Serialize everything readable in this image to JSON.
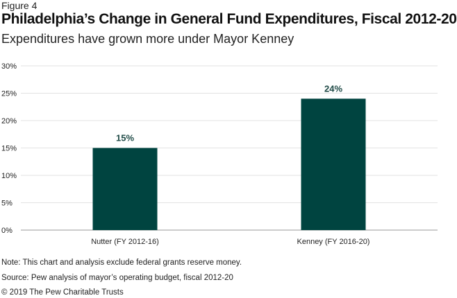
{
  "figure_label": "Figure 4",
  "title": "Philadelphia’s Change in General Fund Expenditures, Fiscal 2012-20",
  "subtitle": "Expenditures have grown more under Mayor Kenney",
  "note": "Note: This chart and analysis exclude federal grants reserve money.",
  "source": "Source: Pew analysis of mayor’s operating budget, fiscal 2012-20",
  "copyright": "© 2019 The Pew Charitable Trusts",
  "colors": {
    "bar": "#004440",
    "gridline": "#d9d9d9",
    "axis": "#999999",
    "data_label": "#1f4a46"
  },
  "chart_data": {
    "type": "bar",
    "categories": [
      "Nutter (FY 2012-16)",
      "Kenney (FY 2016-20)"
    ],
    "values": [
      15,
      24
    ],
    "data_labels": [
      "15%",
      "24%"
    ],
    "ylim": [
      0,
      30
    ],
    "yticks": [
      0,
      5,
      10,
      15,
      20,
      25,
      30
    ],
    "ytick_labels": [
      "0%",
      "5%",
      "10%",
      "15%",
      "20%",
      "25%",
      "30%"
    ],
    "grid": true,
    "legend": false
  }
}
